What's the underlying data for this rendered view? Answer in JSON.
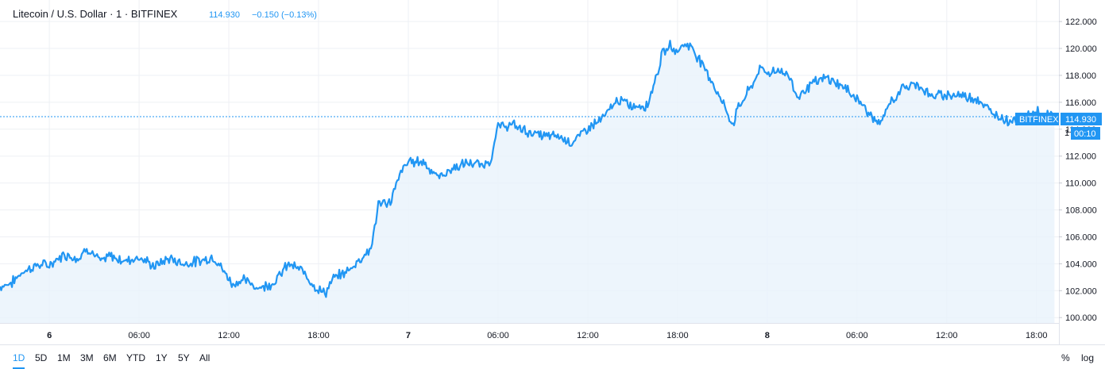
{
  "legend": {
    "symbol_text": "Litecoin / U.S. Dollar · 1 · BITFINEX",
    "last_value": "114.930",
    "change": "−0.150 (−0.13%)",
    "value_color": "#2196f3"
  },
  "price_badge": {
    "exchange": "BITFINEX",
    "price": "114.930",
    "countdown": "00:10",
    "color": "#2196f3"
  },
  "axis_partial_label": "1",
  "bottom_bar": {
    "ranges": [
      "1D",
      "5D",
      "1M",
      "3M",
      "6M",
      "YTD",
      "1Y",
      "5Y",
      "All"
    ],
    "active_range": "1D",
    "percent_label": "%",
    "log_label": "log"
  },
  "colors": {
    "line": "#2196f3",
    "area_fill": "#e9f2fb",
    "grid": "#eef0f4",
    "border": "#e0e3eb"
  },
  "chart_data": {
    "type": "area",
    "title": "Litecoin / U.S. Dollar · 1 · BITFINEX",
    "xlabel": "",
    "ylabel": "",
    "ylim": [
      99.6,
      123.6
    ],
    "y_ticks": [
      "100.000",
      "102.000",
      "104.000",
      "106.000",
      "108.000",
      "110.000",
      "112.000",
      "114.000",
      "116.000",
      "118.000",
      "120.000",
      "122.000"
    ],
    "y_tick_values": [
      100,
      102,
      104,
      106,
      108,
      110,
      112,
      114,
      116,
      118,
      120,
      122
    ],
    "x_tick_labels": [
      "6",
      "06:00",
      "12:00",
      "18:00",
      "7",
      "06:00",
      "12:00",
      "18:00",
      "8",
      "06:00",
      "12:00",
      "18:00"
    ],
    "x_tick_hours": [
      0,
      6,
      12,
      18,
      24,
      30,
      36,
      42,
      48,
      54,
      60,
      66
    ],
    "x_range_hours": [
      -3.3,
      67.5
    ],
    "grid": true,
    "last_price": 114.93,
    "series": [
      {
        "x_hours": [
          -3.3,
          -2.5,
          -1.8,
          -0.8,
          0,
          1,
          2,
          2.5,
          3.5,
          4,
          5,
          6,
          7,
          8,
          9,
          10,
          11,
          12,
          12.2,
          13,
          14,
          15,
          16,
          17,
          18,
          18.5,
          19,
          20,
          21,
          21.5,
          22,
          22.8,
          23.5,
          24,
          25,
          26,
          27,
          28,
          29,
          29.5,
          30,
          31,
          32,
          33,
          34,
          35,
          36,
          37,
          38,
          39,
          40,
          41,
          41.5,
          42,
          42.5,
          43,
          44,
          45,
          45.7,
          46,
          47,
          47.5,
          48,
          48.8,
          49.5,
          50,
          51,
          52,
          53,
          54,
          55,
          55.6,
          56,
          57,
          58,
          59,
          60,
          61,
          62,
          63,
          64,
          65,
          66,
          66.5,
          67.2
        ],
        "values": [
          102.3,
          102.6,
          103.4,
          103.9,
          103.9,
          104.7,
          104.4,
          105.2,
          104.1,
          104.6,
          104.2,
          104.5,
          103.8,
          104.4,
          104.0,
          104.2,
          104.5,
          102.9,
          102.5,
          102.8,
          102.2,
          102.6,
          104.0,
          103.4,
          102.0,
          101.9,
          102.9,
          103.5,
          104.6,
          105.1,
          108.4,
          108.6,
          110.8,
          111.6,
          111.6,
          110.4,
          111.1,
          111.5,
          111.3,
          111.7,
          114.2,
          114.3,
          113.8,
          113.5,
          113.5,
          113.0,
          114.1,
          114.8,
          116.2,
          115.7,
          115.8,
          119.6,
          120.2,
          119.8,
          120.4,
          120.0,
          118.2,
          116.0,
          114.3,
          115.5,
          117.3,
          118.5,
          118.2,
          118.4,
          117.9,
          116.4,
          117.4,
          117.8,
          117.2,
          116.3,
          114.9,
          114.3,
          115.6,
          117.0,
          117.4,
          116.4,
          116.6,
          116.5,
          116.3,
          115.2,
          114.7,
          114.6,
          115.4,
          115.1,
          114.93
        ]
      }
    ]
  }
}
